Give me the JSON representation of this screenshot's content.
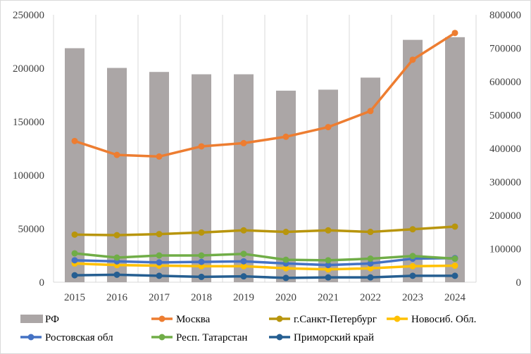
{
  "chart_data": {
    "type": "bar-line-combo",
    "title": "",
    "categories": [
      "2015",
      "2016",
      "2017",
      "2018",
      "2019",
      "2020",
      "2021",
      "2022",
      "2023",
      "2024"
    ],
    "left_axis": {
      "min": 0,
      "max": 250000,
      "step": 50000,
      "tick_labels": [
        "0",
        "50000",
        "100000",
        "150000",
        "200000",
        "250000"
      ]
    },
    "right_axis": {
      "min": 0,
      "max": 800000,
      "step": 100000,
      "tick_labels": [
        "0",
        "100000",
        "200000",
        "300000",
        "400000",
        "500000",
        "600000",
        "700000",
        "800000"
      ]
    },
    "bar_series": {
      "name": "РФ",
      "axis": "right",
      "color": "#aba6a6",
      "values": [
        700000,
        641000,
        629000,
        622000,
        622000,
        573000,
        576000,
        612000,
        725000,
        733000
      ]
    },
    "line_series": [
      {
        "name": "Москва",
        "axis": "left",
        "color": "#ed7d31",
        "values": [
          132000,
          119000,
          117500,
          127000,
          130000,
          136000,
          145000,
          160000,
          208000,
          233000
        ]
      },
      {
        "name": "г.Санкт-Петербург",
        "axis": "left",
        "color": "#b8950d",
        "values": [
          44500,
          44000,
          45000,
          46500,
          48500,
          47000,
          48500,
          47000,
          49500,
          52000
        ]
      },
      {
        "name": "Новосиб. Обл.",
        "axis": "left",
        "color": "#ffc000",
        "values": [
          17500,
          16000,
          15500,
          15000,
          15000,
          13000,
          12000,
          13000,
          15000,
          15500
        ]
      },
      {
        "name": "Ростовская обл",
        "axis": "left",
        "color": "#4472c4",
        "values": [
          20500,
          19500,
          18500,
          19000,
          19500,
          17500,
          16000,
          17500,
          22000,
          22500
        ]
      },
      {
        "name": "Респ. Татарстан",
        "axis": "left",
        "color": "#70ad47",
        "values": [
          27000,
          23000,
          25000,
          25000,
          26500,
          21000,
          20500,
          22000,
          24500,
          22000
        ]
      },
      {
        "name": "Приморский край",
        "axis": "left",
        "color": "#255e91",
        "values": [
          6500,
          7000,
          6000,
          5000,
          5500,
          4000,
          4500,
          4500,
          6000,
          6000
        ]
      }
    ],
    "legend_position": "bottom",
    "grid": "vertical"
  }
}
